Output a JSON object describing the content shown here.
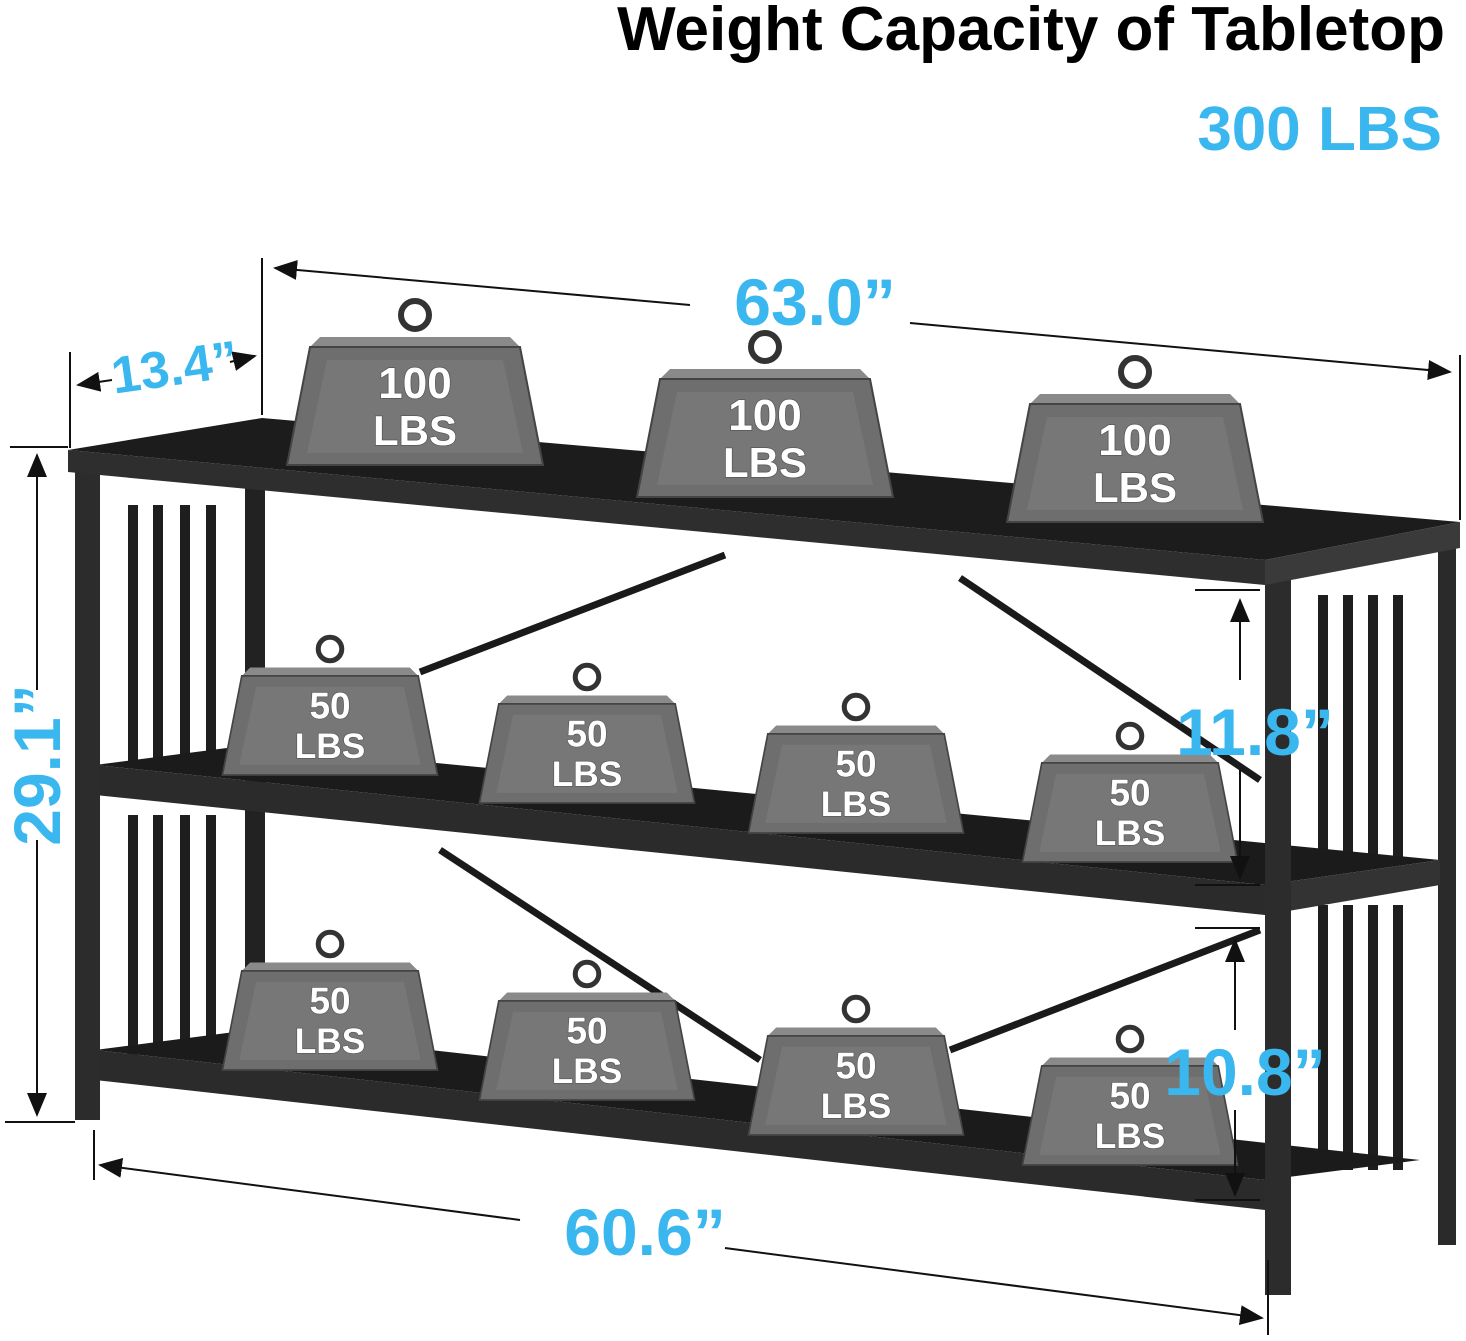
{
  "header": {
    "title": "Weight Capacity of Tabletop",
    "capacity": "300 LBS"
  },
  "dimensions": {
    "length_top": "63.0”",
    "depth": "13.4”",
    "height": "29.1”",
    "upper_gap": "11.8”",
    "lower_gap": "10.8”",
    "length_bottom": "60.6”"
  },
  "weights": [
    {
      "number": "100",
      "unit": "LBS"
    },
    {
      "number": "100",
      "unit": "LBS"
    },
    {
      "number": "100",
      "unit": "LBS"
    },
    {
      "number": "50",
      "unit": "LBS"
    },
    {
      "number": "50",
      "unit": "LBS"
    },
    {
      "number": "50",
      "unit": "LBS"
    },
    {
      "number": "50",
      "unit": "LBS"
    },
    {
      "number": "50",
      "unit": "LBS"
    },
    {
      "number": "50",
      "unit": "LBS"
    },
    {
      "number": "50",
      "unit": "LBS"
    },
    {
      "number": "50",
      "unit": "LBS"
    }
  ]
}
